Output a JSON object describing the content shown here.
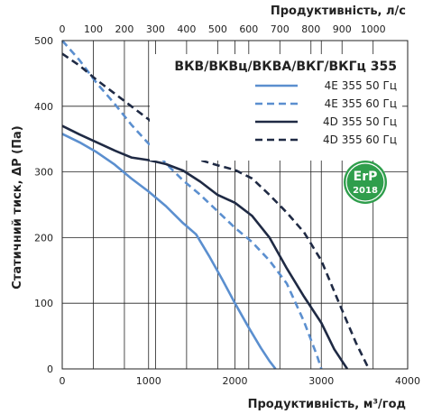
{
  "chart_data": {
    "type": "line",
    "title": "ВКВ/ВКВц/ВКВА/ВКГ/ВКГц 355",
    "xlabel": "Продуктивність, м³/год",
    "x2label": "Продуктивність, л/с",
    "ylabel": "Статичний тиск, ΔP (Па)",
    "xlim": [
      0,
      4000
    ],
    "ylim": [
      0,
      500
    ],
    "xticks": [
      "0",
      "1000",
      "2000",
      "3000",
      "4000"
    ],
    "x2ticks": [
      "0",
      "100",
      "200",
      "300",
      "400",
      "500",
      "600",
      "700",
      "800",
      "900",
      "1000"
    ],
    "yticks": [
      "0",
      "100",
      "200",
      "300",
      "400",
      "500"
    ],
    "grid": true,
    "legend_position": "top-right",
    "badge": {
      "line1": "ErP",
      "line2": "2018"
    },
    "colors": {
      "light_blue": "#5b8fcf",
      "dark_navy": "#1f2a44",
      "badge_green": "#2f9e4c"
    },
    "series": [
      {
        "name": "4E 355 50 Гц",
        "style": "solid",
        "color": "#5b8fcf",
        "x": [
          0,
          200,
          400,
          600,
          800,
          1000,
          1200,
          1400,
          1550,
          1700,
          1850,
          2000,
          2150,
          2300,
          2400,
          2470
        ],
        "y": [
          358,
          345,
          330,
          312,
          290,
          270,
          248,
          222,
          205,
          172,
          137,
          100,
          65,
          32,
          12,
          0
        ]
      },
      {
        "name": "4E 355 60 Гц",
        "style": "dashed",
        "color": "#5b8fcf",
        "x": [
          0,
          200,
          400,
          600,
          800,
          1000,
          1200,
          1400,
          1600,
          1800,
          2000,
          2200,
          2400,
          2600,
          2800,
          2950,
          3000
        ],
        "y": [
          500,
          470,
          435,
          405,
          372,
          343,
          313,
          287,
          265,
          240,
          215,
          193,
          165,
          130,
          72,
          20,
          0
        ]
      },
      {
        "name": "4D 355 50 Гц",
        "style": "solid",
        "color": "#1f2a44",
        "x": [
          0,
          200,
          400,
          600,
          800,
          1000,
          1200,
          1400,
          1600,
          1800,
          2000,
          2200,
          2400,
          2600,
          2800,
          3000,
          3150,
          3300
        ],
        "y": [
          370,
          357,
          345,
          333,
          322,
          318,
          312,
          302,
          285,
          265,
          253,
          233,
          200,
          153,
          110,
          70,
          30,
          0
        ]
      },
      {
        "name": "4D 355 60 Гц",
        "style": "dashed",
        "color": "#1f2a44",
        "x": [
          0,
          200,
          400,
          600,
          800,
          1000,
          1200,
          1400,
          1600,
          1800,
          2000,
          2200,
          2400,
          2600,
          2800,
          3000,
          3200,
          3400,
          3550
        ],
        "y": [
          480,
          462,
          440,
          420,
          400,
          380,
          357,
          333,
          318,
          310,
          303,
          290,
          265,
          238,
          208,
          165,
          102,
          40,
          0
        ]
      }
    ]
  }
}
